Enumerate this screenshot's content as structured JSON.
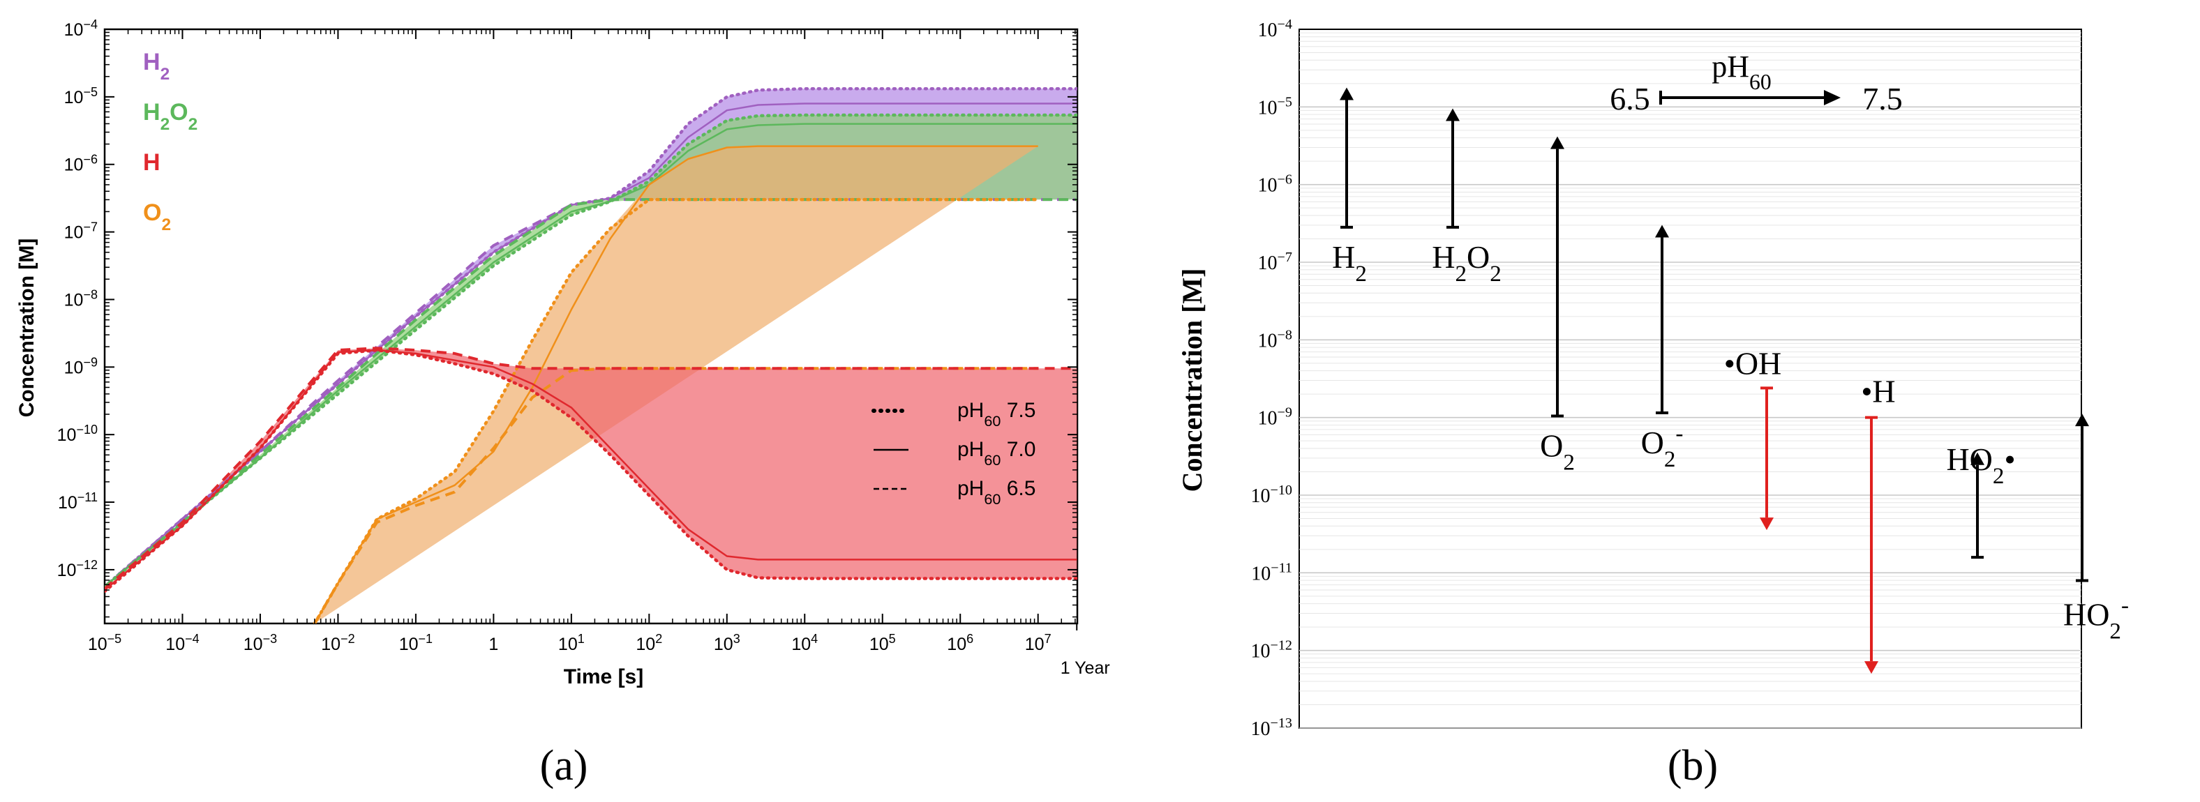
{
  "chart_data": [
    {
      "type": "line",
      "panel_label": "(a)",
      "xscale": "log",
      "yscale": "log",
      "xlabel": "Time [s]",
      "ylabel": "Concentration [M]",
      "xlim": [
        1e-05,
        32000000.0
      ],
      "ylim": [
        1.6e-13,
        0.0001
      ],
      "x_ticks": [
        {
          "b": "10",
          "e": "−5",
          "v": 1e-05
        },
        {
          "b": "10",
          "e": "−4",
          "v": 0.0001
        },
        {
          "b": "10",
          "e": "−3",
          "v": 0.001
        },
        {
          "b": "10",
          "e": "−2",
          "v": 0.01
        },
        {
          "b": "10",
          "e": "−1",
          "v": 0.1
        },
        {
          "b": "1",
          "e": "",
          "v": 1
        },
        {
          "b": "10",
          "e": "1",
          "v": 10
        },
        {
          "b": "10",
          "e": "2",
          "v": 100
        },
        {
          "b": "10",
          "e": "3",
          "v": 1000.0
        },
        {
          "b": "10",
          "e": "4",
          "v": 10000.0
        },
        {
          "b": "10",
          "e": "5",
          "v": 100000.0
        },
        {
          "b": "10",
          "e": "6",
          "v": 1000000.0
        },
        {
          "b": "10",
          "e": "7",
          "v": 10000000.0
        }
      ],
      "x_extra_tick": {
        "label": "1 Year",
        "v": 31500000.0
      },
      "y_ticks": [
        {
          "e": "−12",
          "v": -12
        },
        {
          "e": "−11",
          "v": -11
        },
        {
          "e": "−10",
          "v": -10
        },
        {
          "e": "−9",
          "v": -9
        },
        {
          "e": "−8",
          "v": -8
        },
        {
          "e": "−7",
          "v": -7
        },
        {
          "e": "−6",
          "v": -6
        },
        {
          "e": "−5",
          "v": -5
        },
        {
          "e": "−4",
          "v": -4
        }
      ],
      "species_legend": [
        {
          "name": "H2",
          "label_main": "H",
          "label_sub": "2",
          "label_rest": "",
          "color": "#a060c0"
        },
        {
          "name": "H2O2",
          "label_main": "H",
          "label_sub": "2",
          "label_rest": "O",
          "label_sub2": "2",
          "color": "#5cb85c"
        },
        {
          "name": "H",
          "label_main": "H",
          "label_sub": "",
          "label_rest": "",
          "color": "#e0282e"
        },
        {
          "name": "O2",
          "label_main": "O",
          "label_sub": "2",
          "label_rest": "",
          "color": "#f0901a"
        }
      ],
      "style_legend": [
        {
          "style": "dotted",
          "pre": "pH",
          "sub": "60",
          "post": " 7.5"
        },
        {
          "style": "solid",
          "pre": "pH",
          "sub": "60",
          "post": " 7.0"
        },
        {
          "style": "dashed",
          "pre": "pH",
          "sub": "60",
          "post": " 6.5"
        }
      ],
      "series": [
        {
          "name": "H2",
          "color": "#a060c0",
          "fill": "#b48ae6",
          "x_log": [
            -5,
            -4,
            -3,
            -2,
            -1,
            0,
            1,
            1.5,
            2,
            2.5,
            3,
            3.4,
            4,
            5,
            6,
            7,
            7.5
          ],
          "pH7.5": [
            -12.25,
            -11.25,
            -10.25,
            -9.25,
            -8.25,
            -7.3,
            -6.6,
            -6.5,
            -6.1,
            -5.4,
            -5.0,
            -4.9,
            -4.88,
            -4.88,
            -4.88,
            -4.88,
            -4.88
          ],
          "pH7.0": [
            -12.25,
            -11.25,
            -10.25,
            -9.25,
            -8.25,
            -7.3,
            -6.6,
            -6.5,
            -6.2,
            -5.6,
            -5.2,
            -5.12,
            -5.1,
            -5.1,
            -5.1,
            -5.1,
            -5.1
          ],
          "pH6.5": [
            -12.25,
            -11.25,
            -10.25,
            -9.2,
            -8.2,
            -7.2,
            -6.6,
            -6.52,
            -6.52,
            -6.52,
            -6.52,
            -6.52,
            -6.52,
            -6.52,
            -6.52,
            -6.52,
            -6.52
          ]
        },
        {
          "name": "H2O2",
          "color": "#5cb85c",
          "fill": "#8fd07a",
          "x_log": [
            -5,
            -4,
            -3,
            -2,
            -1,
            0,
            1,
            1.5,
            2,
            2.5,
            3,
            3.4,
            4,
            5,
            6,
            7,
            7.5
          ],
          "pH7.5": [
            -12.25,
            -11.3,
            -10.35,
            -9.4,
            -8.45,
            -7.5,
            -6.75,
            -6.55,
            -6.25,
            -5.7,
            -5.35,
            -5.28,
            -5.27,
            -5.27,
            -5.27,
            -5.27,
            -5.27
          ],
          "pH7.0": [
            -12.25,
            -11.3,
            -10.35,
            -9.35,
            -8.4,
            -7.45,
            -6.7,
            -6.55,
            -6.3,
            -5.8,
            -5.48,
            -5.42,
            -5.4,
            -5.4,
            -5.4,
            -5.4,
            -5.4
          ],
          "pH6.5": [
            -12.25,
            -11.3,
            -10.3,
            -9.3,
            -8.3,
            -7.35,
            -6.6,
            -6.52,
            -6.52,
            -6.52,
            -6.52,
            -6.52,
            -6.52,
            -6.52,
            -6.52,
            -6.52,
            -6.52
          ]
        },
        {
          "name": "O2",
          "color": "#f0901a",
          "fill": "#f0b070",
          "x_log": [
            -2.3,
            -2,
            -1.5,
            -1,
            -0.5,
            0,
            0.5,
            1,
            1.5,
            2,
            2.5,
            3,
            3.4,
            4,
            5,
            6,
            7,
            7.5
          ],
          "pH7.5": [
            -12.8,
            -12.2,
            -11.25,
            -10.95,
            -10.55,
            -9.65,
            -8.6,
            -7.6,
            -6.95,
            -6.52,
            -6.52,
            -6.52,
            -6.52,
            -6.52,
            -6.52,
            -6.52,
            -6.52
          ],
          "pH7.0": [
            -12.8,
            -12.2,
            -11.25,
            -11.0,
            -10.75,
            -10.25,
            -9.3,
            -8.15,
            -7.1,
            -6.3,
            -5.92,
            -5.75,
            -5.73,
            -5.73,
            -5.73,
            -5.73,
            -5.73
          ],
          "pH6.5": [
            -12.8,
            -12.2,
            -11.3,
            -11.05,
            -10.85,
            -10.2,
            -9.45,
            -9.05,
            -9.02,
            -9.02,
            -9.02,
            -9.02,
            -9.02,
            -9.02,
            -9.02,
            -9.02,
            -9.02
          ]
        },
        {
          "name": "H",
          "color": "#e0282e",
          "fill": "#f06870",
          "x_log": [
            -5,
            -4,
            -3,
            -2,
            -1.5,
            -1,
            -0.5,
            0,
            0.5,
            1,
            1.5,
            2,
            2.5,
            3,
            3.4,
            4,
            5,
            6,
            7,
            7.5
          ],
          "pH7.5": [
            -12.32,
            -11.35,
            -10.2,
            -8.8,
            -8.75,
            -8.82,
            -8.95,
            -9.1,
            -9.35,
            -9.75,
            -10.3,
            -10.9,
            -11.5,
            -12.0,
            -12.12,
            -12.13,
            -12.13,
            -12.13,
            -12.13,
            -12.13
          ],
          "pH7.0": [
            -12.3,
            -11.35,
            -10.2,
            -8.78,
            -8.75,
            -8.8,
            -8.9,
            -9.0,
            -9.25,
            -9.6,
            -10.2,
            -10.8,
            -11.4,
            -11.8,
            -11.85,
            -11.85,
            -11.85,
            -11.85,
            -11.85,
            -11.85
          ],
          "pH6.5": [
            -12.28,
            -11.3,
            -10.1,
            -8.75,
            -8.72,
            -8.75,
            -8.8,
            -8.95,
            -9.02,
            -9.02,
            -9.02,
            -9.02,
            -9.02,
            -9.02,
            -9.02,
            -9.02,
            -9.02,
            -9.02,
            -9.02,
            -9.02
          ]
        }
      ]
    },
    {
      "type": "range-arrow",
      "panel_label": "(b)",
      "ylabel": "Concentration [M]",
      "yscale": "log",
      "ylim": [
        1e-13,
        0.0001
      ],
      "y_ticks": [
        {
          "e": "−13",
          "v": -13
        },
        {
          "e": "−12",
          "v": -12
        },
        {
          "e": "−11",
          "v": -11
        },
        {
          "e": "−10",
          "v": -10
        },
        {
          "e": "−9",
          "v": -9
        },
        {
          "e": "−8",
          "v": -8
        },
        {
          "e": "−7",
          "v": -7
        },
        {
          "e": "−6",
          "v": -6
        },
        {
          "e": "−5",
          "v": -5
        },
        {
          "e": "−4",
          "v": -4
        }
      ],
      "ph_legend": {
        "from": "6.5",
        "to": "7.5",
        "label_main": "pH",
        "label_sub": "60"
      },
      "species": [
        {
          "name": "H2",
          "parts": [
            [
              "H",
              ""
            ],
            [
              "2",
              "sub"
            ]
          ],
          "start_log": -6.55,
          "end_log": -4.75,
          "color": "#000000",
          "label_pos": "below-start"
        },
        {
          "name": "H2O2",
          "parts": [
            [
              "H",
              ""
            ],
            [
              "2",
              "sub"
            ],
            [
              "O",
              ""
            ],
            [
              "2",
              "sub"
            ]
          ],
          "start_log": -6.55,
          "end_log": -5.02,
          "color": "#000000",
          "label_pos": "below-start"
        },
        {
          "name": "O2",
          "parts": [
            [
              "O",
              ""
            ],
            [
              "2",
              "sub"
            ]
          ],
          "start_log": -8.98,
          "end_log": -5.38,
          "color": "#000000",
          "label_pos": "below-start"
        },
        {
          "name": "O2-",
          "parts": [
            [
              "O",
              ""
            ],
            [
              "2",
              "sub"
            ],
            [
              "-",
              "sup"
            ]
          ],
          "start_log": -8.94,
          "end_log": -6.52,
          "color": "#000000",
          "label_pos": "below-start"
        },
        {
          "name": "OH",
          "parts": [
            [
              "•OH",
              ""
            ]
          ],
          "start_log": -8.62,
          "end_log": -10.45,
          "color": "#e0201e",
          "label_pos": "above-start"
        },
        {
          "name": "H",
          "parts": [
            [
              "•H",
              ""
            ]
          ],
          "start_log": -9.0,
          "end_log": -12.3,
          "color": "#e0201e",
          "label_pos": "above-start"
        },
        {
          "name": "HO2",
          "parts": [
            [
              "HO",
              ""
            ],
            [
              "2",
              "sub"
            ],
            [
              "•",
              ""
            ]
          ],
          "start_log": -10.8,
          "end_log": -9.45,
          "color": "#000000",
          "label_pos": "above-end"
        },
        {
          "name": "HO2-",
          "parts": [
            [
              "HO",
              ""
            ],
            [
              "2",
              "sub"
            ],
            [
              "-",
              "sup"
            ]
          ],
          "start_log": -11.1,
          "end_log": -8.95,
          "color": "#000000",
          "label_pos": "below-start"
        }
      ]
    }
  ]
}
